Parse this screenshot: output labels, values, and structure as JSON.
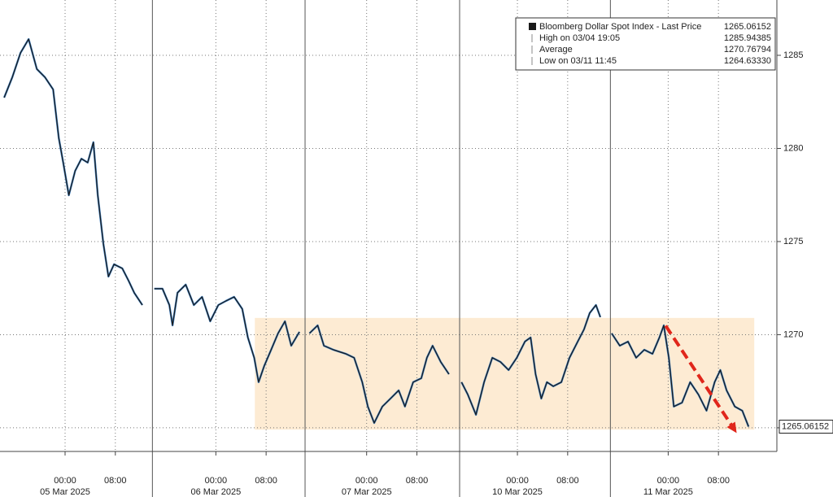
{
  "chart_data": {
    "type": "line",
    "series": [
      {
        "name": "Bloomberg Dollar Spot Index - Last Price",
        "color": "#1a1a1a",
        "x": [
          -9.7,
          -8.4,
          -7.1,
          -5.8,
          -4.5,
          -3.2,
          -1.9,
          -1.0,
          -0.3,
          0.6,
          1.6,
          2.6,
          3.6,
          4.5,
          5.2,
          6.1,
          6.9,
          7.8,
          9.1,
          10.1,
          11.0,
          12.3,
          13.2,
          14.2,
          15.5,
          16.6,
          17.1,
          17.9,
          19.2,
          20.5,
          21.8,
          23.1,
          24.4,
          25.6,
          26.9,
          28.2,
          29.1,
          30.1,
          30.8,
          31.7,
          32.8,
          33.9,
          35.0,
          36.0,
          37.3,
          38.1,
          38.9,
          40.2,
          41.2,
          42.7,
          44.7,
          46.0,
          47.3,
          48.2,
          49.2,
          50.5,
          51.8,
          53.1,
          54.1,
          55.4,
          56.7,
          57.6,
          58.5,
          59.8,
          61.1,
          62.1,
          63.1,
          64.1,
          65.4,
          66.7,
          68.0,
          69.3,
          70.6,
          71.9,
          73.2,
          74.1,
          74.9,
          75.8,
          76.7,
          77.7,
          79.0,
          80.3,
          81.6,
          82.6,
          83.5,
          84.5,
          85.2,
          86.1,
          87.0,
          88.3,
          89.6,
          90.9,
          92.2,
          93.5,
          94.6,
          95.3,
          96.1,
          96.9,
          98.2,
          99.5,
          100.8,
          102.1,
          103.4,
          104.3,
          105.3,
          106.6,
          107.8,
          108.8
        ],
        "values": [
          1282.73,
          1283.82,
          1285.13,
          1285.87,
          1284.26,
          1283.82,
          1283.17,
          1280.55,
          1279.24,
          1277.49,
          1278.8,
          1279.45,
          1279.24,
          1280.33,
          1277.49,
          1274.87,
          1273.12,
          1273.78,
          1273.56,
          1272.9,
          1272.25,
          1271.59,
          null,
          1272.47,
          1272.47,
          1271.59,
          1270.5,
          1272.25,
          1272.69,
          1271.59,
          1272.03,
          1270.72,
          1271.59,
          1271.81,
          1272.03,
          1271.38,
          1269.85,
          1268.76,
          1267.45,
          1268.32,
          1269.19,
          1270.07,
          1270.72,
          1269.41,
          1270.15,
          null,
          1270.07,
          1270.5,
          1269.41,
          1269.19,
          1268.97,
          1268.76,
          1267.45,
          1266.14,
          1265.26,
          1266.14,
          1266.57,
          1267.01,
          1266.14,
          1267.45,
          1267.66,
          1268.76,
          1269.41,
          1268.54,
          1267.88,
          null,
          1267.45,
          1266.79,
          1265.7,
          1267.45,
          1268.76,
          1268.54,
          1268.1,
          1268.76,
          1269.63,
          1269.85,
          1267.88,
          1266.57,
          1267.45,
          1267.23,
          1267.45,
          1268.76,
          1269.63,
          1270.28,
          1271.16,
          1271.59,
          1270.94,
          null,
          1270.07,
          1269.41,
          1269.63,
          1268.76,
          1269.19,
          1268.97,
          1269.85,
          1270.5,
          1268.76,
          1266.14,
          1266.35,
          1267.45,
          1266.79,
          1265.92,
          1267.45,
          1268.1,
          1267.01,
          1266.14,
          1265.92,
          1265.06
        ]
      }
    ],
    "xlim": [
      -10.36,
      113.3
    ],
    "xticks": [
      {
        "value": 0,
        "label": "00:00"
      },
      {
        "value": 8,
        "label": "08:00"
      },
      {
        "value": 24,
        "label": "00:00"
      },
      {
        "value": 32,
        "label": "08:00"
      },
      {
        "value": 48,
        "label": "00:00"
      },
      {
        "value": 56,
        "label": "08:00"
      },
      {
        "value": 72,
        "label": "00:00"
      },
      {
        "value": 80,
        "label": "08:00"
      },
      {
        "value": 96,
        "label": "00:00"
      },
      {
        "value": 104,
        "label": "08:00"
      }
    ],
    "x_date_labels": [
      {
        "value": 0,
        "label": "05 Mar 2025"
      },
      {
        "value": 24,
        "label": "06 Mar 2025"
      },
      {
        "value": 48,
        "label": "07 Mar 2025"
      },
      {
        "value": 72,
        "label": "10 Mar 2025"
      },
      {
        "value": 96,
        "label": "11 Mar 2025"
      }
    ],
    "day_separators": [
      13.9,
      38.2,
      62.8,
      86.8
    ],
    "ylim": [
      1263.73,
      1287.97
    ],
    "yticks": [
      1265,
      1270,
      1275,
      1280,
      1285
    ],
    "grid": true,
    "last_price": 1265.06152,
    "highlight": {
      "x": [
        30.2,
        109.7
      ],
      "y": [
        1264.9,
        1270.9
      ],
      "color": "#fdebd3"
    },
    "arrow": {
      "x": [
        95.6,
        106.9
      ],
      "y": [
        1270.48,
        1264.72
      ],
      "color": "#e0261b"
    },
    "legend_stats": [
      {
        "name": "High on 03/04 19:05",
        "value": 1285.94385
      },
      {
        "name": "Average",
        "value": 1270.76794
      },
      {
        "name": "Low on 03/11 11:45",
        "value": {
          "value": 1264.6333,
          "label": "1264.63330"
        }
      }
    ]
  }
}
